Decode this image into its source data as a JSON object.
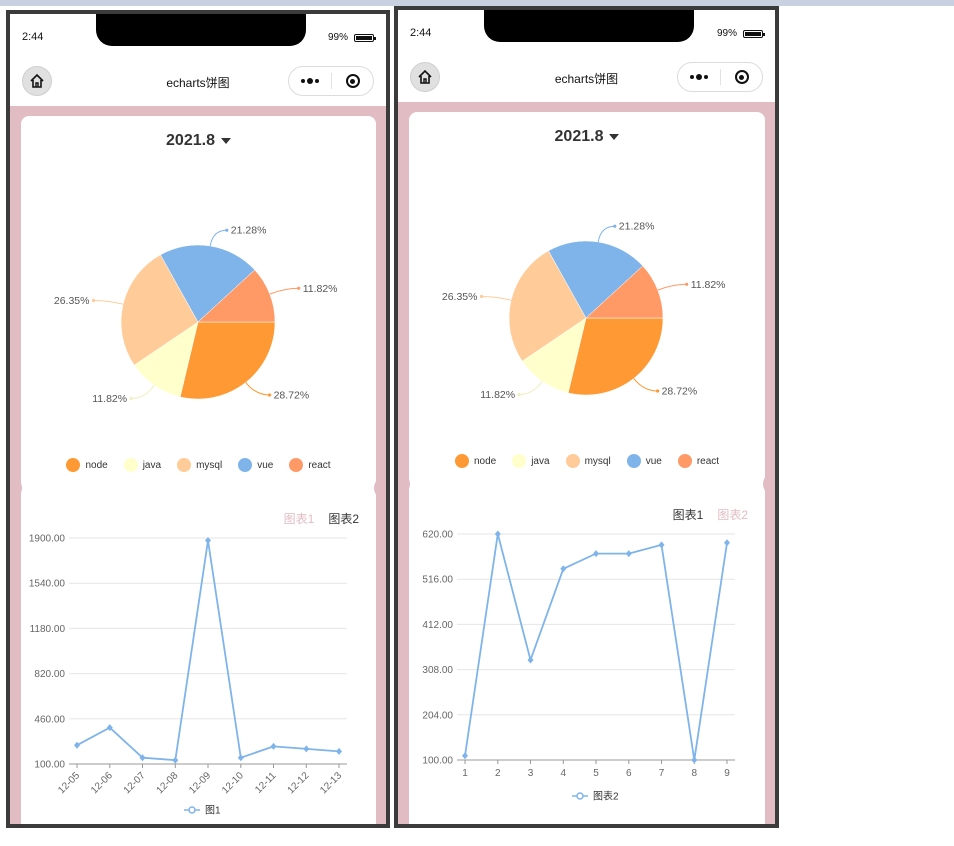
{
  "phones": [
    {
      "status": {
        "time": "2:44",
        "battery": "99%"
      },
      "nav": {
        "title": "echarts饼图"
      },
      "date": "2021.8",
      "pie": {
        "slices": [
          {
            "name": "node",
            "value": 28.72,
            "label": "28.72%",
            "color": "#ff9933"
          },
          {
            "name": "java",
            "value": 11.82,
            "label": "11.82%",
            "color": "#ffffcc"
          },
          {
            "name": "mysql",
            "value": 26.35,
            "label": "26.35%",
            "color": "#ffcc99"
          },
          {
            "name": "vue",
            "value": 21.28,
            "label": "21.28%",
            "color": "#7fb4ea"
          },
          {
            "name": "react",
            "value": 11.82,
            "label": "11.82%",
            "color": "#ff9966"
          }
        ]
      },
      "tabs": [
        {
          "label": "图表1",
          "active": true
        },
        {
          "label": "图表2",
          "active": false
        }
      ],
      "chart_data": {
        "type": "line",
        "categories": [
          "12-05",
          "12-06",
          "12-07",
          "12-08",
          "12-09",
          "12-10",
          "12-11",
          "12-12",
          "12-13"
        ],
        "series": [
          {
            "name": "图1",
            "values": [
              250,
              390,
              150,
              130,
              1880,
              150,
              240,
              220,
              200
            ]
          }
        ],
        "yticks": [
          "1900.00",
          "1540.00",
          "1180.00",
          "820.00",
          "460.00",
          "100.00"
        ],
        "ylim": [
          100,
          1900
        ],
        "rotate_x_labels": true,
        "color": "#7fb4ea"
      }
    },
    {
      "status": {
        "time": "2:44",
        "battery": "99%"
      },
      "nav": {
        "title": "echarts饼图"
      },
      "date": "2021.8",
      "pie": {
        "slices": [
          {
            "name": "node",
            "value": 28.72,
            "label": "28.72%",
            "color": "#ff9933"
          },
          {
            "name": "java",
            "value": 11.82,
            "label": "11.82%",
            "color": "#ffffcc"
          },
          {
            "name": "mysql",
            "value": 26.35,
            "label": "26.35%",
            "color": "#ffcc99"
          },
          {
            "name": "vue",
            "value": 21.28,
            "label": "21.28%",
            "color": "#7fb4ea"
          },
          {
            "name": "react",
            "value": 11.82,
            "label": "11.82%",
            "color": "#ff9966"
          }
        ]
      },
      "tabs": [
        {
          "label": "图表1",
          "active": false
        },
        {
          "label": "图表2",
          "active": true
        }
      ],
      "chart_data": {
        "type": "line",
        "categories": [
          "1",
          "2",
          "3",
          "4",
          "5",
          "6",
          "7",
          "8",
          "9"
        ],
        "series": [
          {
            "name": "图表2",
            "values": [
              110,
              620,
              330,
              540,
              575,
              575,
              595,
              100,
              600
            ]
          }
        ],
        "yticks": [
          "620.00",
          "516.00",
          "412.00",
          "308.00",
          "204.00",
          "100.00"
        ],
        "ylim": [
          100,
          620
        ],
        "rotate_x_labels": false,
        "color": "#7fb4ea"
      }
    }
  ]
}
